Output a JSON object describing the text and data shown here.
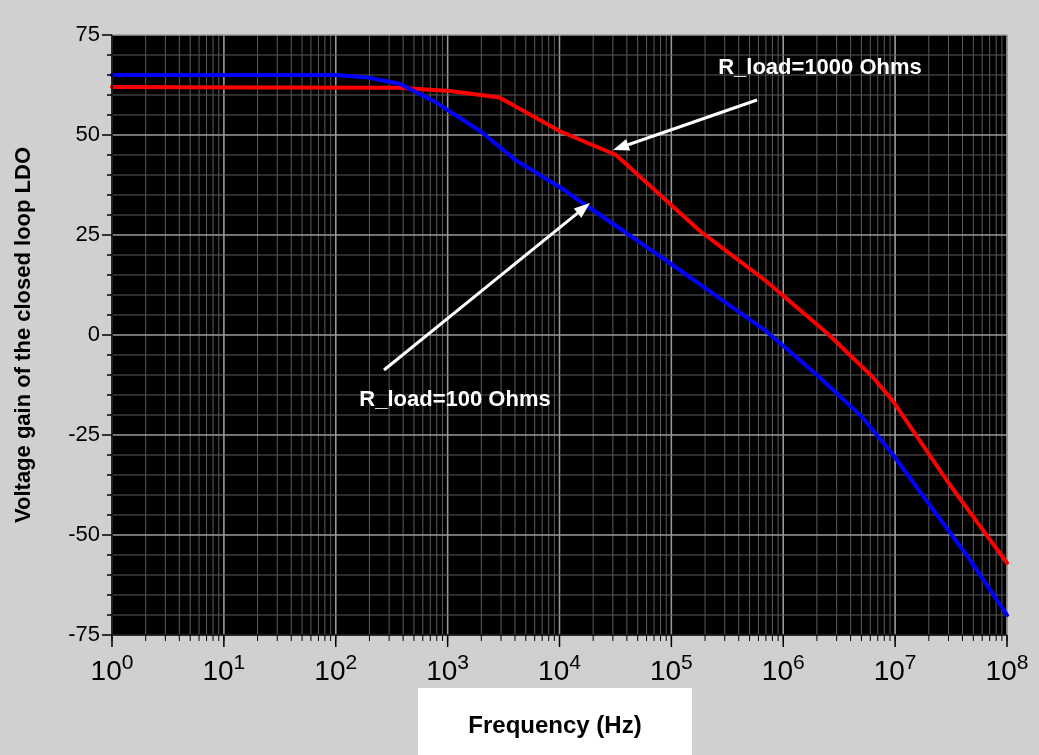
{
  "chart_data": {
    "type": "line",
    "xlabel": "Frequency (Hz)",
    "ylabel": "Voltage gain of the closed loop LDO",
    "log": "x",
    "grid": true,
    "marker": "none",
    "line_style": "solid",
    "xlim": [
      1,
      100000000
    ],
    "ylim": [
      -75,
      75
    ],
    "xticks": [
      {
        "value": 1,
        "label": "10$^{0}$"
      },
      {
        "value": 10,
        "label": "10$^{1}$"
      },
      {
        "value": 100,
        "label": "10$^{2}$"
      },
      {
        "value": 1000,
        "label": "10$^{3}$"
      },
      {
        "value": 10000,
        "label": "10$^{4}$"
      },
      {
        "value": 100000,
        "label": "10$^{5}$"
      },
      {
        "value": 1000000,
        "label": "10$^{6}$"
      },
      {
        "value": 10000000,
        "label": "10$^{7}$"
      },
      {
        "value": 100000000,
        "label": "10$^{8}$"
      }
    ],
    "yticks": [
      -75,
      {
        "value": -70,
        "label": null
      },
      {
        "value": -65,
        "label": null
      },
      {
        "value": -60,
        "label": null
      },
      {
        "value": -55,
        "label": null
      },
      -50,
      {
        "value": -45,
        "label": null
      },
      {
        "value": -40,
        "label": null
      },
      {
        "value": -35,
        "label": null
      },
      {
        "value": -30,
        "label": null
      },
      -25,
      {
        "value": -20,
        "label": null
      },
      {
        "value": -15,
        "label": null
      },
      {
        "value": -10,
        "label": null
      },
      {
        "value": -5,
        "label": null
      },
      0,
      {
        "value": 5,
        "label": null
      },
      {
        "value": 10,
        "label": null
      },
      {
        "value": 15,
        "label": null
      },
      {
        "value": 20,
        "label": null
      },
      25,
      {
        "value": 30,
        "label": null
      },
      {
        "value": 35,
        "label": null
      },
      {
        "value": 40,
        "label": null
      },
      {
        "value": 45,
        "label": null
      },
      50,
      {
        "value": 55,
        "label": null
      },
      {
        "value": 60,
        "label": null
      },
      {
        "value": 65,
        "label": null
      },
      {
        "value": 70,
        "label": null
      },
      75
    ],
    "series": [
      {
        "color": "#ff0000",
        "x": [
          1,
          370,
          1050,
          2900,
          10000,
          32000,
          180000,
          700000,
          2500000,
          6300000,
          9500000,
          30000000,
          100000000
        ],
        "values": [
          62,
          61.8,
          61,
          59.4,
          51,
          45,
          26,
          13.5,
          0.3,
          -10.5,
          -16.4,
          -37,
          -57
        ]
      },
      {
        "color": "#0000ff",
        "x": [
          1,
          100,
          190,
          370,
          740,
          1950,
          4100,
          10000,
          35000,
          91000,
          700000,
          2100000,
          5100000,
          9500000,
          21000000,
          43000000,
          100000000
        ],
        "values": [
          65,
          65,
          64.4,
          62.8,
          58.6,
          51,
          43.6,
          37,
          26.5,
          18.5,
          1,
          -10.5,
          -20.6,
          -29.8,
          -43,
          -54.8,
          -70
        ]
      }
    ],
    "annotations": [
      "R_load=1000 Ohms",
      "R_load=100 Ohms"
    ]
  }
}
